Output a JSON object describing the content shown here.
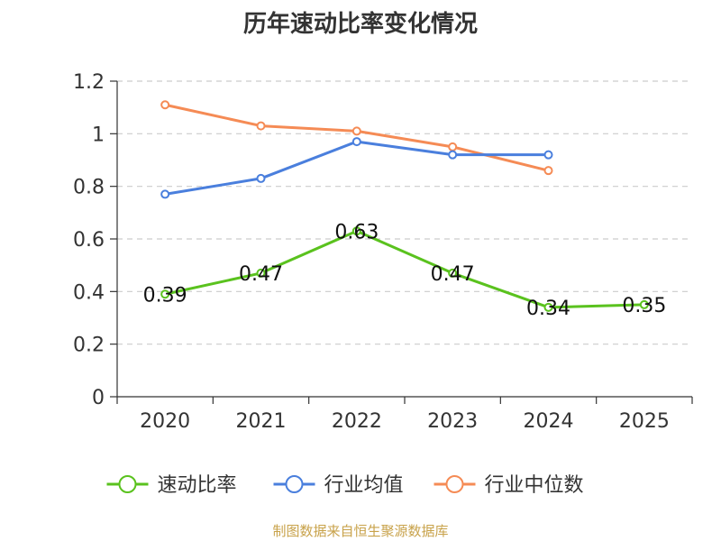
{
  "chart_data": {
    "type": "line",
    "title": "历年速动比率变化情况",
    "categories": [
      "2020",
      "2021",
      "2022",
      "2023",
      "2024",
      "2025"
    ],
    "ylim": [
      0,
      1.2
    ],
    "yticks": [
      "0",
      "0.2",
      "0.4",
      "0.6",
      "0.8",
      "1",
      "1.2"
    ],
    "grid": true,
    "legend_position": "bottom",
    "series": [
      {
        "name": "速动比率",
        "color": "#5ac21e",
        "values": [
          0.39,
          0.47,
          0.63,
          0.47,
          0.34,
          0.35
        ],
        "labels": [
          "0.39",
          "0.47",
          "0.63",
          "0.47",
          "0.34",
          "0.35"
        ]
      },
      {
        "name": "行业均值",
        "color": "#4a7fdd",
        "values": [
          0.77,
          0.83,
          0.97,
          0.92,
          0.92,
          null
        ]
      },
      {
        "name": "行业中位数",
        "color": "#f58b55",
        "values": [
          1.11,
          1.03,
          1.01,
          0.95,
          0.86,
          null
        ]
      }
    ]
  },
  "footer": {
    "source": "制图数据来自恒生聚源数据库"
  }
}
